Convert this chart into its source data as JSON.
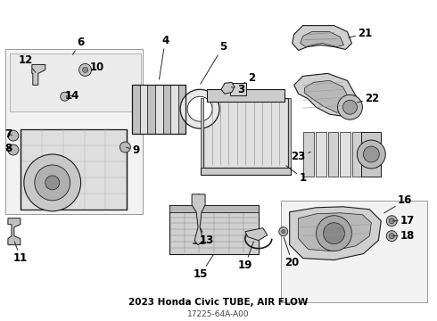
{
  "title": "2023 Honda Civic TUBE, AIR FLOW",
  "part_number": "17225-64A-A00",
  "bg_color": "#ffffff",
  "line_color": "#1a1a1a",
  "gray_fill": "#d8d8d8",
  "light_gray": "#eeeeee",
  "mid_gray": "#bbbbbb",
  "box_edge": "#999999",
  "box_fill": "#f2f2f2",
  "label_fs": 8.5,
  "label_bold": true
}
